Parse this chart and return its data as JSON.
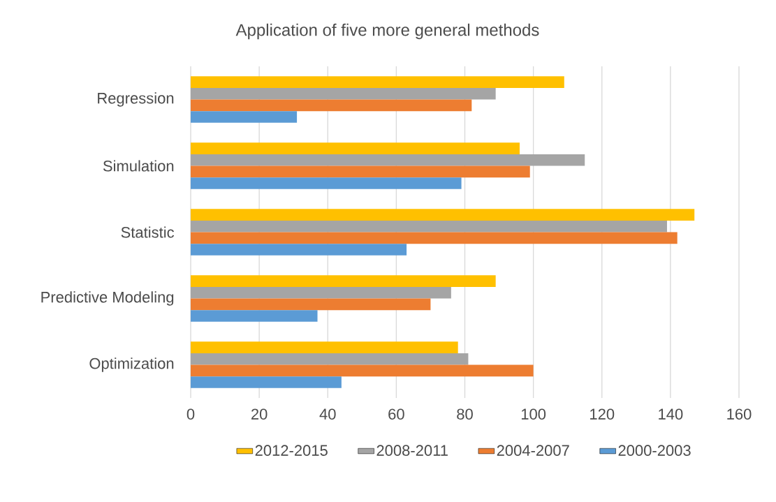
{
  "chart_data": {
    "type": "bar",
    "orientation": "horizontal",
    "title": "Application of five more general methods",
    "categories": [
      "Regression",
      "Simulation",
      "Statistic",
      "Predictive Modeling",
      "Optimization"
    ],
    "series": [
      {
        "name": "2012-2015",
        "color": "#ffc000",
        "values": [
          109,
          96,
          147,
          89,
          78
        ]
      },
      {
        "name": "2008-2011",
        "color": "#a5a5a5",
        "values": [
          89,
          115,
          139,
          76,
          81
        ]
      },
      {
        "name": "2004-2007",
        "color": "#ed7d31",
        "values": [
          82,
          99,
          142,
          70,
          100
        ]
      },
      {
        "name": "2000-2003",
        "color": "#5b9bd5",
        "values": [
          31,
          79,
          63,
          37,
          44
        ]
      }
    ],
    "xlim": [
      0,
      160
    ],
    "xticks": [
      0,
      20,
      40,
      60,
      80,
      100,
      120,
      140,
      160
    ],
    "grid": "x",
    "legend": "bottom"
  }
}
